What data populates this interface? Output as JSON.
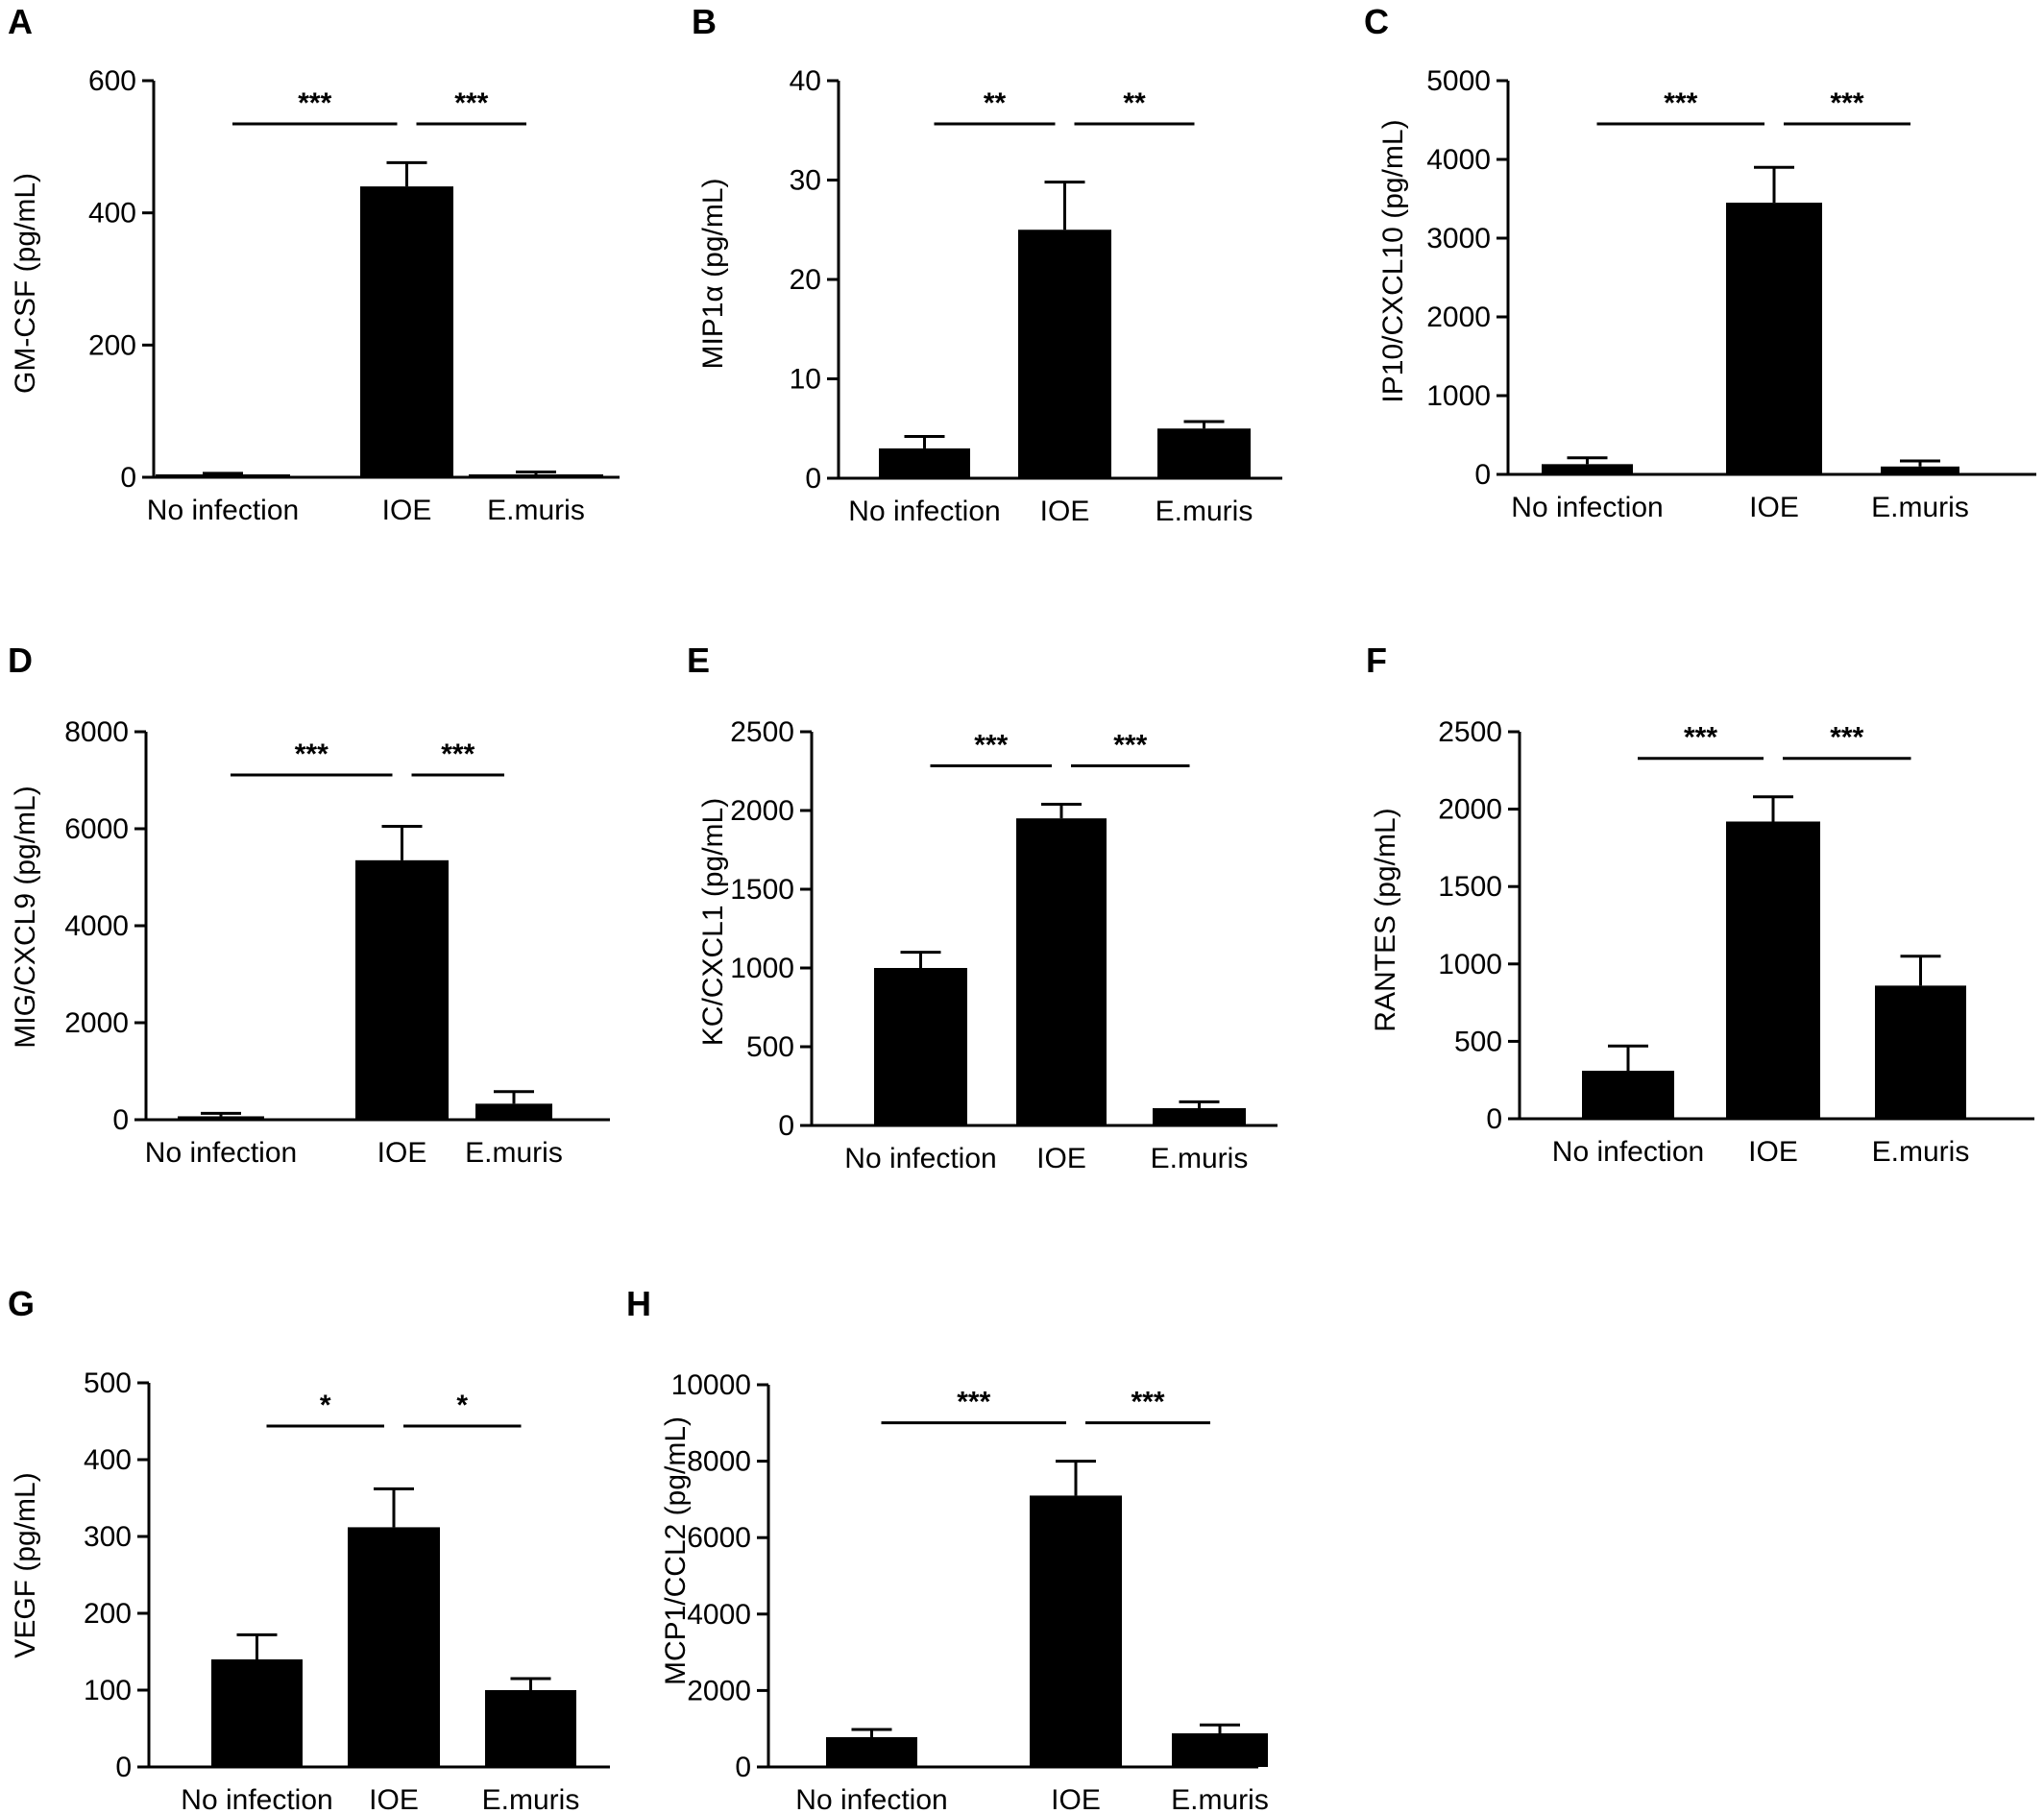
{
  "chart_data": [
    {
      "panel": "A",
      "type": "bar",
      "categories": [
        "No infection",
        "IOE",
        "E.muris"
      ],
      "values": [
        3,
        440,
        4
      ],
      "errors": [
        3,
        36,
        4
      ],
      "ylabel": "GM-CSF (pg/mL)",
      "ylim": [
        0,
        600
      ],
      "yticks": [
        0,
        200,
        400,
        600
      ],
      "comparisons": [
        {
          "from": 0,
          "to": 1,
          "label": "***"
        },
        {
          "from": 1,
          "to": 2,
          "label": "***"
        }
      ]
    },
    {
      "panel": "B",
      "type": "bar",
      "categories": [
        "No infection",
        "IOE",
        "E.muris"
      ],
      "values": [
        3,
        25,
        5
      ],
      "errors": [
        1.2,
        4.8,
        0.7
      ],
      "ylabel": "MIP1α (pg/mL)",
      "ylim": [
        0,
        40
      ],
      "yticks": [
        0,
        10,
        20,
        30,
        40
      ],
      "comparisons": [
        {
          "from": 0,
          "to": 1,
          "label": "**"
        },
        {
          "from": 1,
          "to": 2,
          "label": "**"
        }
      ]
    },
    {
      "panel": "C",
      "type": "bar",
      "categories": [
        "No infection",
        "IOE",
        "E.muris"
      ],
      "values": [
        130,
        3450,
        100
      ],
      "errors": [
        80,
        450,
        70
      ],
      "ylabel": "IP10/CXCL10 (pg/mL)",
      "ylim": [
        0,
        5000
      ],
      "yticks": [
        0,
        1000,
        2000,
        3000,
        4000,
        5000
      ],
      "comparisons": [
        {
          "from": 0,
          "to": 1,
          "label": "***"
        },
        {
          "from": 1,
          "to": 2,
          "label": "***"
        }
      ]
    },
    {
      "panel": "D",
      "type": "bar",
      "categories": [
        "No infection",
        "IOE",
        "E.muris"
      ],
      "values": [
        70,
        5350,
        330
      ],
      "errors": [
        60,
        700,
        250
      ],
      "ylabel": "MIG/CXCL9 (pg/mL)",
      "ylim": [
        0,
        8000
      ],
      "yticks": [
        0,
        2000,
        4000,
        6000,
        8000
      ],
      "comparisons": [
        {
          "from": 0,
          "to": 1,
          "label": "***"
        },
        {
          "from": 1,
          "to": 2,
          "label": "***"
        }
      ]
    },
    {
      "panel": "E",
      "type": "bar",
      "categories": [
        "No infection",
        "IOE",
        "E.muris"
      ],
      "values": [
        1000,
        1950,
        110
      ],
      "errors": [
        100,
        90,
        40
      ],
      "ylabel": "KC/CXCL1 (pg/mL)",
      "ylim": [
        0,
        2500
      ],
      "yticks": [
        0,
        500,
        1000,
        1500,
        2000,
        2500
      ],
      "comparisons": [
        {
          "from": 0,
          "to": 1,
          "label": "***"
        },
        {
          "from": 1,
          "to": 2,
          "label": "***"
        }
      ]
    },
    {
      "panel": "F",
      "type": "bar",
      "categories": [
        "No infection",
        "IOE",
        "E.muris"
      ],
      "values": [
        310,
        1920,
        860
      ],
      "errors": [
        160,
        160,
        190
      ],
      "ylabel": "RANTES (pg/mL)",
      "ylim": [
        0,
        2500
      ],
      "yticks": [
        0,
        500,
        1000,
        1500,
        2000,
        2500
      ],
      "comparisons": [
        {
          "from": 0,
          "to": 1,
          "label": "***"
        },
        {
          "from": 1,
          "to": 2,
          "label": "***"
        }
      ]
    },
    {
      "panel": "G",
      "type": "bar",
      "categories": [
        "No infection",
        "IOE",
        "E.muris"
      ],
      "values": [
        140,
        312,
        100
      ],
      "errors": [
        32,
        50,
        15
      ],
      "ylabel": "VEGF (pg/mL)",
      "ylim": [
        0,
        500
      ],
      "yticks": [
        0,
        100,
        200,
        300,
        400,
        500
      ],
      "comparisons": [
        {
          "from": 0,
          "to": 1,
          "label": "*"
        },
        {
          "from": 1,
          "to": 2,
          "label": "*"
        }
      ]
    },
    {
      "panel": "H",
      "type": "bar",
      "categories": [
        "No infection",
        "IOE",
        "E.muris"
      ],
      "values": [
        780,
        7100,
        880
      ],
      "errors": [
        200,
        900,
        220
      ],
      "ylabel": "MCP1/CCL2 (pg/mL)",
      "ylim": [
        0,
        10000
      ],
      "yticks": [
        0,
        2000,
        4000,
        6000,
        8000,
        10000
      ],
      "comparisons": [
        {
          "from": 0,
          "to": 1,
          "label": "***"
        },
        {
          "from": 1,
          "to": 2,
          "label": "***"
        }
      ]
    }
  ]
}
